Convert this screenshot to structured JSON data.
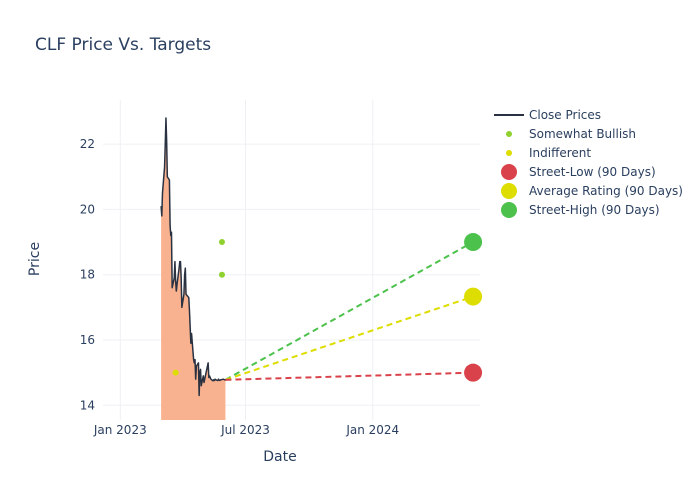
{
  "chart_data": {
    "type": "line",
    "title": "CLF Price Vs. Targets",
    "xlabel": "Date",
    "ylabel": "Price",
    "x_ticks": [
      "Jan 2023",
      "Jul 2023",
      "Jan 2024"
    ],
    "y_ticks": [
      14,
      16,
      18,
      20,
      22
    ],
    "ylim": [
      13.55,
      23.35
    ],
    "xlim": [
      "2022-12-07",
      "2024-06-04"
    ],
    "grid": true,
    "legend_position": "top-right",
    "colors": {
      "close": "#2a3241",
      "fill": "#f9b28f",
      "somewhat_bullish": "#8fd12f",
      "indifferent": "#dddd00",
      "street_low": "#d9424b",
      "average": "#dddd00",
      "street_high": "#4cc24c"
    },
    "series": [
      {
        "name": "Close Prices",
        "kind": "line",
        "x": [
          "2023-03-01",
          "2023-03-02",
          "2023-03-03",
          "2023-03-06",
          "2023-03-07",
          "2023-03-08",
          "2023-03-09",
          "2023-03-10",
          "2023-03-13",
          "2023-03-14",
          "2023-03-15",
          "2023-03-16",
          "2023-03-17",
          "2023-03-20",
          "2023-03-21",
          "2023-03-22",
          "2023-03-23",
          "2023-03-24",
          "2023-03-27",
          "2023-03-28",
          "2023-03-29",
          "2023-03-30",
          "2023-03-31",
          "2023-04-03",
          "2023-04-04",
          "2023-04-05",
          "2023-04-06",
          "2023-04-10",
          "2023-04-11",
          "2023-04-12",
          "2023-04-13",
          "2023-04-14",
          "2023-04-17",
          "2023-04-18",
          "2023-04-19",
          "2023-04-20",
          "2023-04-21",
          "2023-04-24",
          "2023-04-25",
          "2023-04-26",
          "2023-04-27",
          "2023-04-28",
          "2023-05-01",
          "2023-05-02",
          "2023-05-03",
          "2023-05-04",
          "2023-05-05",
          "2023-05-08",
          "2023-05-09",
          "2023-05-10",
          "2023-05-11",
          "2023-05-12",
          "2023-05-15",
          "2023-05-16",
          "2023-05-17",
          "2023-05-18",
          "2023-05-19",
          "2023-05-22",
          "2023-05-23",
          "2023-05-24",
          "2023-05-25",
          "2023-05-26",
          "2023-05-30",
          "2023-05-31",
          "2023-06-01",
          "2023-06-02"
        ],
        "values": [
          20.1,
          19.8,
          20.5,
          21.3,
          22.0,
          22.8,
          22.1,
          21.0,
          20.9,
          19.5,
          19.2,
          19.3,
          17.6,
          17.9,
          18.4,
          17.8,
          17.5,
          17.7,
          18.2,
          18.4,
          18.4,
          17.9,
          17.0,
          17.4,
          18.0,
          18.2,
          17.4,
          17.3,
          16.9,
          16.4,
          15.9,
          16.2,
          15.4,
          15.3,
          15.4,
          14.8,
          15.2,
          15.3,
          14.3,
          15.0,
          15.1,
          14.6,
          14.9,
          14.7,
          14.8,
          14.9,
          15.0,
          15.3,
          14.85,
          14.9,
          14.85,
          14.8,
          14.75,
          14.78,
          14.76,
          14.8,
          14.78,
          14.76,
          14.8,
          14.77,
          14.76,
          14.78,
          14.8,
          14.79,
          14.78,
          14.78
        ]
      },
      {
        "name": "Somewhat Bullish",
        "kind": "scatter",
        "x": [
          "2023-05-28",
          "2023-05-28"
        ],
        "values": [
          19.0,
          18.0
        ]
      },
      {
        "name": "Indifferent",
        "kind": "scatter",
        "x": [
          "2023-03-22"
        ],
        "values": [
          15.0
        ]
      },
      {
        "name": "Street-Low (90 Days)",
        "kind": "target",
        "x": [
          "2023-06-02",
          "2024-05-25"
        ],
        "values": [
          14.78,
          15.0
        ]
      },
      {
        "name": "Average Rating (90 Days)",
        "kind": "target",
        "x": [
          "2023-06-02",
          "2024-05-25"
        ],
        "values": [
          14.78,
          17.33
        ]
      },
      {
        "name": "Street-High (90 Days)",
        "kind": "target",
        "x": [
          "2023-06-02",
          "2024-05-25"
        ],
        "values": [
          14.78,
          19.0
        ]
      }
    ]
  }
}
